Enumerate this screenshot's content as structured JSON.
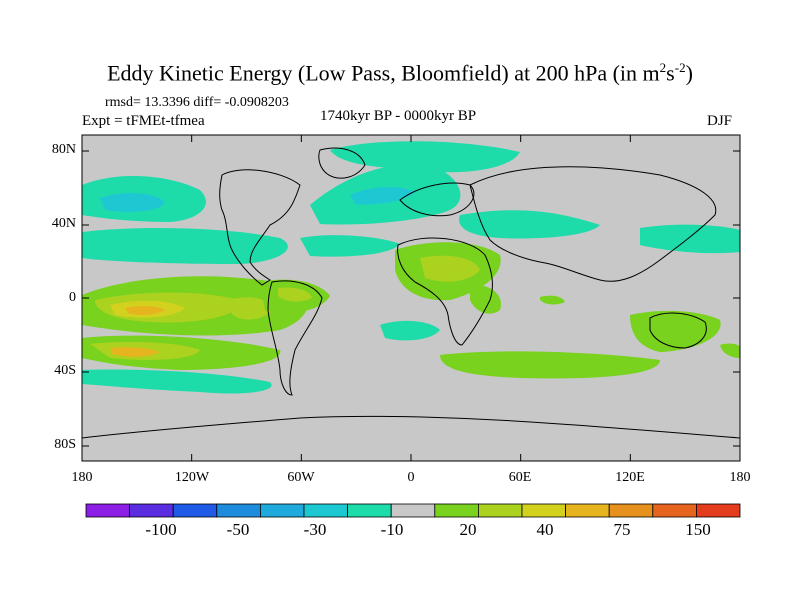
{
  "header": {
    "title_main": "Eddy Kinetic Energy (Low Pass, Bloomfield) at 200 hPa (in m",
    "title_sup1": "2",
    "title_mid": "s",
    "title_sup2": "-2",
    "title_end": ")",
    "stats": "rmsd= 13.3396 diff= -0.0908203",
    "experiment": "Expt = tFMEt-tfmea",
    "period": "1740kyr BP - 0000kyr BP",
    "season": "DJF"
  },
  "axes": {
    "lat_labels": [
      "80N",
      "40N",
      "0",
      "40S",
      "80S"
    ],
    "lon_labels": [
      "180",
      "120W",
      "60W",
      "0",
      "60E",
      "120E",
      "180"
    ]
  },
  "colorbar": {
    "colors": [
      "#8c1ee6",
      "#5a2de0",
      "#1e5ae6",
      "#1e8cdc",
      "#1eaadc",
      "#1ec8d2",
      "#1edcaa",
      "#c8c8c8",
      "#78d21e",
      "#aad21e",
      "#d2d21e",
      "#e6b41e",
      "#e6911e",
      "#e6641e",
      "#e63c1e"
    ],
    "labels": [
      "-100",
      "-50",
      "-30",
      "-10",
      "20",
      "40",
      "75",
      "150"
    ]
  },
  "map_colors": {
    "ocean_land_background": "#c8c8c8",
    "negative_light": "#1edcaa",
    "negative_mid": "#1ec8d2",
    "negative_strong": "#1eaadc",
    "positive_light": "#78d21e",
    "positive_mid": "#aad21e",
    "positive_strong": "#d2d21e",
    "positive_peak": "#e6b41e",
    "positive_max": "#e6911e"
  }
}
